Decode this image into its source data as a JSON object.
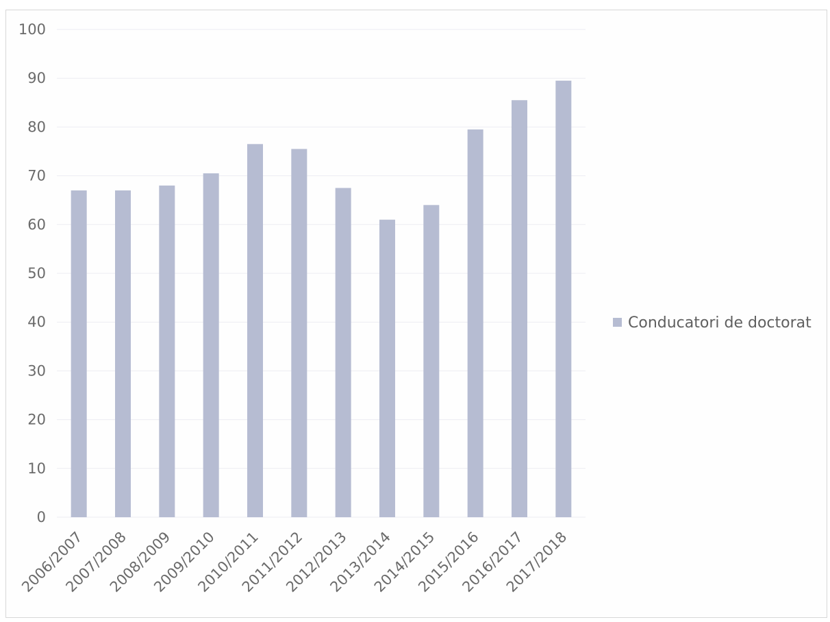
{
  "chart_data": {
    "type": "bar",
    "title": "",
    "xlabel": "",
    "ylabel": "",
    "categories": [
      "2006/2007",
      "2007/2008",
      "2008/2009",
      "2009/2010",
      "2010/2011",
      "2011/2012",
      "2012/2013",
      "2013/2014",
      "2014/2015",
      "2015/2016",
      "2016/2017",
      "2017/2018"
    ],
    "series": [
      {
        "name": "Conducatori de doctorat",
        "values": [
          67,
          67,
          68,
          70.5,
          76.5,
          75.5,
          67.5,
          61,
          64,
          79.5,
          85.5,
          89.5
        ]
      }
    ],
    "ylim": [
      0,
      100
    ],
    "yticks": [
      0,
      10,
      20,
      30,
      40,
      50,
      60,
      70,
      80,
      90,
      100
    ],
    "grid": true,
    "legend_position": "right",
    "colors": {
      "bar": "#b6bcd2",
      "grid": "#ececf2",
      "text": "#6a6a6a"
    }
  }
}
